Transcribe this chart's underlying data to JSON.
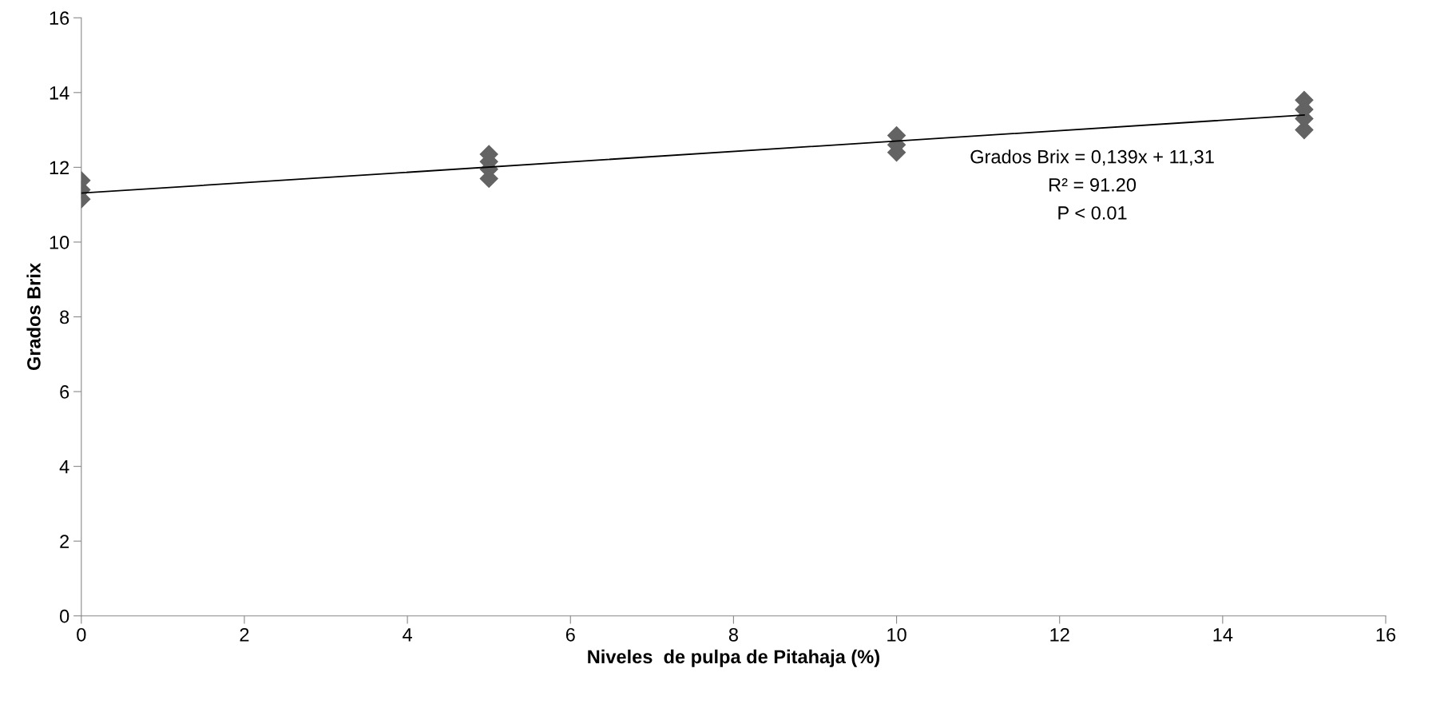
{
  "chart_data": {
    "type": "scatter",
    "xlabel": "Niveles  de pulpa de Pitahaja (%)",
    "ylabel": "Grados Brix",
    "xlim": [
      0,
      16
    ],
    "xticks": [
      0,
      2,
      4,
      6,
      8,
      10,
      12,
      14,
      16
    ],
    "ylim": [
      0,
      16
    ],
    "yticks": [
      0,
      2,
      4,
      6,
      8,
      10,
      12,
      14,
      16
    ],
    "grid": false,
    "marker": "diamond",
    "series": [
      {
        "color": "#636363",
        "x": [
          0,
          0,
          0,
          5,
          5,
          5,
          5,
          10,
          10,
          10,
          15,
          15,
          15,
          15
        ],
        "values": [
          11.15,
          11.4,
          11.65,
          11.7,
          11.95,
          12.15,
          12.35,
          12.4,
          12.6,
          12.85,
          13.0,
          13.3,
          13.55,
          13.8
        ]
      },
      {
        "type": "line",
        "color": "#000000",
        "marker": "none",
        "x": [
          0,
          15
        ],
        "values": [
          11.31,
          13.4
        ]
      }
    ],
    "annotations": [
      "Grados Brix = 0,139x + 11,31",
      "R² = 91.20",
      "P < 0.01"
    ]
  }
}
